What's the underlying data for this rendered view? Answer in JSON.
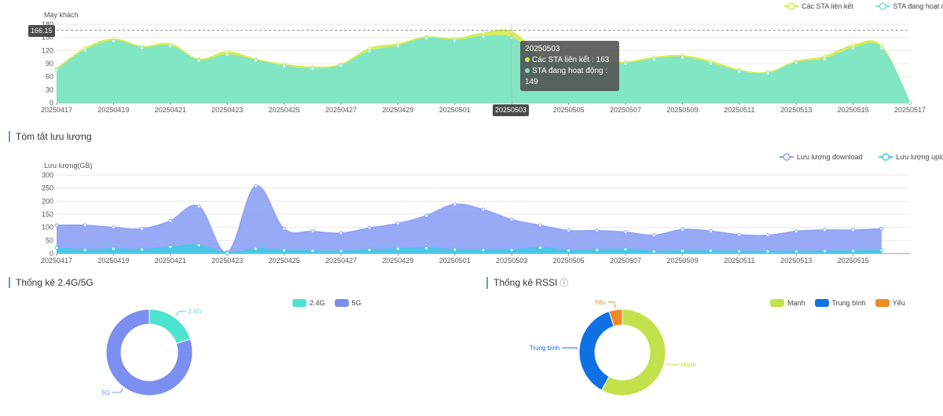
{
  "chart_data": [
    {
      "type": "area",
      "ylabel": "Máy khách",
      "ylim": [
        0,
        180
      ],
      "yticks": [
        0,
        30,
        60,
        90,
        120,
        150,
        180
      ],
      "x": [
        "20250417",
        "20250418",
        "20250419",
        "20250420",
        "20250421",
        "20250422",
        "20250423",
        "20250424",
        "20250425",
        "20250426",
        "20250427",
        "20250428",
        "20250429",
        "20250430",
        "20250501",
        "20250502",
        "20250503",
        "20250504",
        "20250505",
        "20250506",
        "20250507",
        "20250508",
        "20250509",
        "20250510",
        "20250511",
        "20250512",
        "20250513",
        "20250514",
        "20250515",
        "20250516",
        "20250517"
      ],
      "xtick_labels": [
        "20250417",
        "20250419",
        "20250421",
        "20250423",
        "20250425",
        "20250427",
        "20250429",
        "20250501",
        "20250503",
        "20250505",
        "20250507",
        "20250509",
        "20250511",
        "20250513",
        "20250515",
        "20250517"
      ],
      "series": [
        {
          "name": "Các STA liên kết",
          "color": "#d4ec4c",
          "values": [
            78,
            125,
            146,
            129,
            135,
            100,
            117,
            100,
            88,
            82,
            88,
            125,
            135,
            151,
            147,
            160,
            163,
            110,
            95,
            95,
            93,
            104,
            108,
            95,
            75,
            70,
            95,
            106,
            132,
            130,
            0
          ]
        },
        {
          "name": "STA đang hoạt động",
          "color": "#7ae5cc",
          "values": [
            75,
            120,
            142,
            126,
            130,
            97,
            110,
            97,
            84,
            78,
            85,
            118,
            130,
            148,
            143,
            152,
            149,
            105,
            92,
            92,
            90,
            100,
            104,
            90,
            72,
            67,
            92,
            100,
            125,
            125,
            0
          ]
        }
      ],
      "axis_pointer": {
        "y_value": "166.15",
        "x_label": "20250503"
      },
      "tooltip": {
        "title": "20250503",
        "rows": [
          {
            "label": "Các STA liên kết : 163",
            "color": "#d4ec4c"
          },
          {
            "label": "STA đang hoạt động : 149",
            "color": "#7ae5cc"
          }
        ]
      },
      "legend": "top-right",
      "grid": true
    },
    {
      "type": "area",
      "ylabel": "Lưu lượng(GB)",
      "ylim": [
        0,
        300
      ],
      "yticks": [
        0,
        50,
        100,
        150,
        200,
        250,
        300
      ],
      "x": [
        "20250417",
        "20250418",
        "20250419",
        "20250420",
        "20250421",
        "20250422",
        "20250423",
        "20250424",
        "20250425",
        "20250426",
        "20250427",
        "20250428",
        "20250429",
        "20250430",
        "20250501",
        "20250502",
        "20250503",
        "20250504",
        "20250505",
        "20250506",
        "20250507",
        "20250508",
        "20250509",
        "20250510",
        "20250511",
        "20250512",
        "20250513",
        "20250514",
        "20250515",
        "20250516"
      ],
      "xtick_labels": [
        "20250417",
        "20250419",
        "20250421",
        "20250423",
        "20250425",
        "20250427",
        "20250429",
        "20250501",
        "20250503",
        "20250505",
        "20250507",
        "20250509",
        "20250511",
        "20250513",
        "20250515"
      ],
      "series": [
        {
          "name": "Lưu lượng download",
          "color": "#8fa2f4",
          "values": [
            108,
            108,
            100,
            95,
            125,
            180,
            5,
            258,
            95,
            85,
            78,
            98,
            115,
            145,
            188,
            168,
            130,
            108,
            88,
            88,
            82,
            70,
            92,
            86,
            72,
            70,
            85,
            90,
            90,
            95
          ]
        },
        {
          "name": "Lưu lượng upload",
          "color": "#44c9e4",
          "values": [
            22,
            14,
            18,
            15,
            25,
            32,
            2,
            18,
            12,
            10,
            9,
            14,
            18,
            20,
            15,
            13,
            14,
            22,
            12,
            14,
            16,
            8,
            10,
            10,
            8,
            8,
            8,
            9,
            10,
            12
          ]
        }
      ],
      "legend": "top-right",
      "grid": true
    },
    {
      "type": "pie",
      "donut": true,
      "legend": "top",
      "slices": [
        {
          "label": "2.4G",
          "value": 20,
          "color": "#4de3d0"
        },
        {
          "label": "5G",
          "value": 80,
          "color": "#7b8ff0"
        }
      ]
    },
    {
      "type": "pie",
      "donut": true,
      "legend": "top",
      "slices": [
        {
          "label": "Mạnh",
          "value": 58,
          "color": "#c3e14a"
        },
        {
          "label": "Trung bình",
          "value": 37,
          "color": "#1071e5"
        },
        {
          "label": "Yếu",
          "value": 5,
          "color": "#f08a24"
        }
      ]
    }
  ],
  "sections": {
    "traffic_title": "Tóm tắt lưu lượng",
    "band_title": "Thống kê 2.4G/5G",
    "rssi_title": "Thống kê RSSI",
    "help_icon": "help-circle-icon"
  }
}
